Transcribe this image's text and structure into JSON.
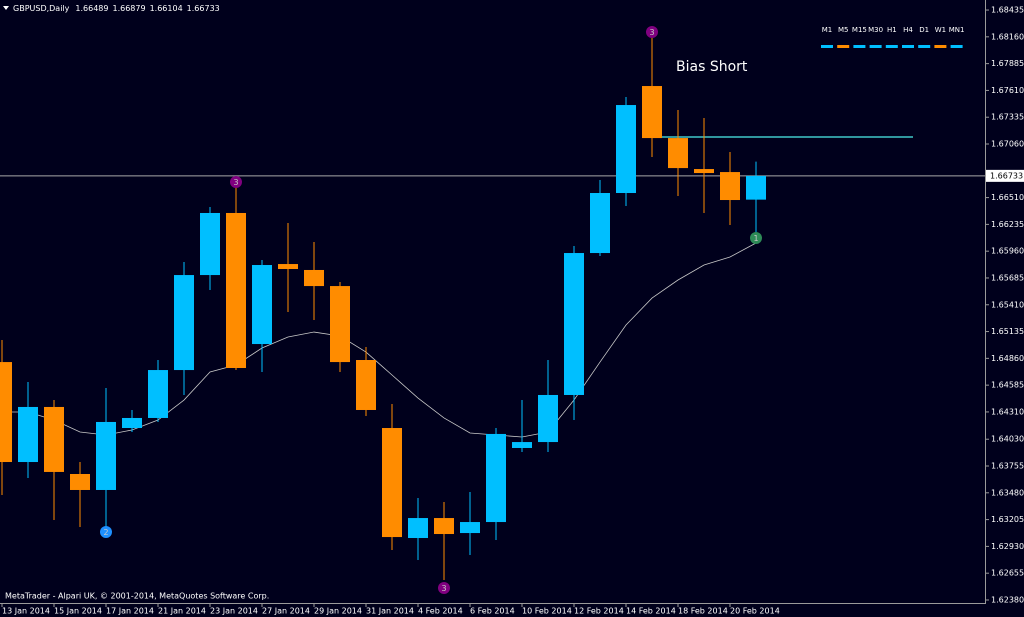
{
  "chart_data": {
    "type": "candlestick",
    "title": "GBPUSD,Daily",
    "categories": [
      "13 Jan 2014",
      null,
      "15 Jan 2014",
      null,
      "17 Jan 2014",
      null,
      "21 Jan 2014",
      null,
      "23 Jan 2014",
      null,
      "27 Jan 2014",
      null,
      "29 Jan 2014",
      null,
      "31 Jan 2014",
      null,
      "4 Feb 2014",
      null,
      "6 Feb 2014",
      null,
      "10 Feb 2014",
      null,
      "12 Feb 2014",
      null,
      "14 Feb 2014",
      null,
      "18 Feb 2014",
      null,
      "20 Feb 2014",
      null
    ],
    "open": [
      1.64822,
      1.63796,
      1.64361,
      1.63673,
      1.63509,
      1.64145,
      1.64248,
      1.6474,
      1.65715,
      1.66352,
      1.65007,
      1.65828,
      1.65767,
      1.65602,
      1.64843,
      1.64145,
      1.63016,
      1.63221,
      1.63067,
      1.6318,
      1.6394,
      1.64001,
      1.64484,
      1.65941,
      1.66557,
      1.67655,
      1.67121,
      1.66803,
      1.66772,
      1.66489
    ],
    "high": [
      1.65048,
      1.64617,
      1.64432,
      1.63796,
      1.64556,
      1.6433,
      1.64843,
      1.65849,
      1.66413,
      1.66639,
      1.65869,
      1.66249,
      1.66054,
      1.65644,
      1.64976,
      1.64391,
      1.63427,
      1.63386,
      1.63488,
      1.64145,
      1.64432,
      1.64843,
      1.66013,
      1.6669,
      1.67542,
      1.68148,
      1.67409,
      1.67327,
      1.66978,
      1.66879
    ],
    "low": [
      1.63457,
      1.63632,
      1.63201,
      1.63129,
      1.63129,
      1.64104,
      1.64207,
      1.64484,
      1.65561,
      1.6474,
      1.6472,
      1.65336,
      1.65254,
      1.6472,
      1.64268,
      1.62893,
      1.6279,
      1.62585,
      1.62842,
      1.62996,
      1.63899,
      1.63899,
      1.64227,
      1.6591,
      1.66424,
      1.66926,
      1.66526,
      1.66352,
      1.66229,
      1.66104
    ],
    "close": [
      1.63796,
      1.64361,
      1.63694,
      1.63509,
      1.64207,
      1.64248,
      1.6474,
      1.65715,
      1.66352,
      1.64761,
      1.65818,
      1.65777,
      1.65602,
      1.64822,
      1.6433,
      1.63026,
      1.63221,
      1.63057,
      1.6318,
      1.64084,
      1.64001,
      1.64484,
      1.65941,
      1.66557,
      1.6746,
      1.67121,
      1.66813,
      1.66762,
      1.66485,
      1.66733
    ],
    "up_color": "#00bfff",
    "down_color": "#ff8c00",
    "line_series": {
      "color": "#c8c8c8",
      "values": [
        1.64309,
        1.64309,
        1.64227,
        1.64104,
        1.64073,
        1.64125,
        1.64227,
        1.64432,
        1.6472,
        1.64792,
        1.64966,
        1.65079,
        1.6513,
        1.65089,
        1.64925,
        1.64689,
        1.64453,
        1.64248,
        1.64094,
        1.64073,
        1.64053,
        1.64104,
        1.64432,
        1.64822,
        1.65202,
        1.65479,
        1.65664,
        1.65818,
        1.659,
        1.66044
      ]
    },
    "ylim": [
      1.62349,
      1.68538
    ],
    "yticks": [
      1.68435,
      {
        "value": 1.6816,
        "label": "1.68160"
      },
      1.67885,
      {
        "value": 1.6761,
        "label": "1.67610"
      },
      1.67335,
      {
        "value": 1.6706,
        "label": "1.67060"
      },
      {
        "value": 1.6651,
        "label": "1.66510"
      },
      1.66235,
      {
        "value": 1.6596,
        "label": "1.65960"
      },
      1.65685,
      {
        "value": 1.6541,
        "label": "1.65410"
      },
      1.65135,
      {
        "value": 1.6486,
        "label": "1.64860"
      },
      1.64585,
      {
        "value": 1.6431,
        "label": "1.64310"
      },
      {
        "value": 1.6403,
        "label": "1.64030"
      },
      1.63755,
      {
        "value": 1.6348,
        "label": "1.63480"
      },
      1.63205,
      {
        "value": 1.6293,
        "label": "1.62930"
      },
      1.62655,
      {
        "value": 1.6238,
        "label": "1.62380"
      }
    ],
    "markers": [
      {
        "label": "2",
        "index": 4,
        "value": 1.63078,
        "color": "#1e90ff"
      },
      {
        "label": "3",
        "index": 9,
        "value": 1.6667,
        "color": "#800080"
      },
      {
        "label": "3",
        "index": 17,
        "value": 1.62503,
        "color": "#800080"
      },
      {
        "label": "3",
        "index": 25,
        "value": 1.68209,
        "color": "#800080"
      },
      {
        "label": "1",
        "index": 29,
        "value": 1.66095,
        "color": "#2e8b57"
      }
    ],
    "level_line": {
      "value": 1.67132,
      "color": "#40c8c8"
    },
    "annotation": "Bias Short",
    "timeframes": [
      {
        "label": "M1",
        "color": "#00bfff"
      },
      {
        "label": "M5",
        "color": "#ff8c00"
      },
      {
        "label": "M15",
        "color": "#00bfff"
      },
      {
        "label": "M30",
        "color": "#00bfff"
      },
      {
        "label": "H1",
        "color": "#00bfff"
      },
      {
        "label": "H4",
        "color": "#00bfff"
      },
      {
        "label": "D1",
        "color": "#00bfff"
      },
      {
        "label": "W1",
        "color": "#ff8c00"
      },
      {
        "label": "MN1",
        "color": "#00bfff"
      }
    ],
    "footer": "MetaTrader - Alpari UK, © 2001-2014, MetaQuotes Software Corp."
  }
}
